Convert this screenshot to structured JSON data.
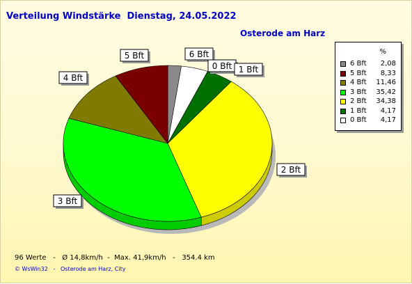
{
  "title": "Verteilung Windstärke  Dienstag, 24.05.2022",
  "subtitle": "Osterode am Harz",
  "legend_header": "%",
  "footer": "96 Werte   -   Ø 14,8km/h  -  Max. 41,9km/h   -   354.4 km",
  "credit": "© WsWin32   -   Osterode am Harz, City",
  "chart_data": {
    "type": "pie",
    "start_direction": "top",
    "order": "clockwise",
    "slices": [
      {
        "label": "6 Bft",
        "value": 2.08,
        "value_text": "2,08",
        "color": "#8a8a8a"
      },
      {
        "label": "0 Bft",
        "value": 4.17,
        "value_text": "4,17",
        "color": "#ffffff"
      },
      {
        "label": "1 Bft",
        "value": 4.17,
        "value_text": "4,17",
        "color": "#007000"
      },
      {
        "label": "2 Bft",
        "value": 34.38,
        "value_text": "34,38",
        "color": "#ffff00"
      },
      {
        "label": "3 Bft",
        "value": 35.42,
        "value_text": "35,42",
        "color": "#00ff00"
      },
      {
        "label": "4 Bft",
        "value": 11.46,
        "value_text": "11,46",
        "color": "#807a00"
      },
      {
        "label": "5 Bft",
        "value": 8.33,
        "value_text": "8,33",
        "color": "#7a0000"
      }
    ],
    "legend_order": [
      "6 Bft",
      "5 Bft",
      "4 Bft",
      "3 Bft",
      "2 Bft",
      "1 Bft",
      "0 Bft"
    ],
    "legend_placement": "right"
  }
}
